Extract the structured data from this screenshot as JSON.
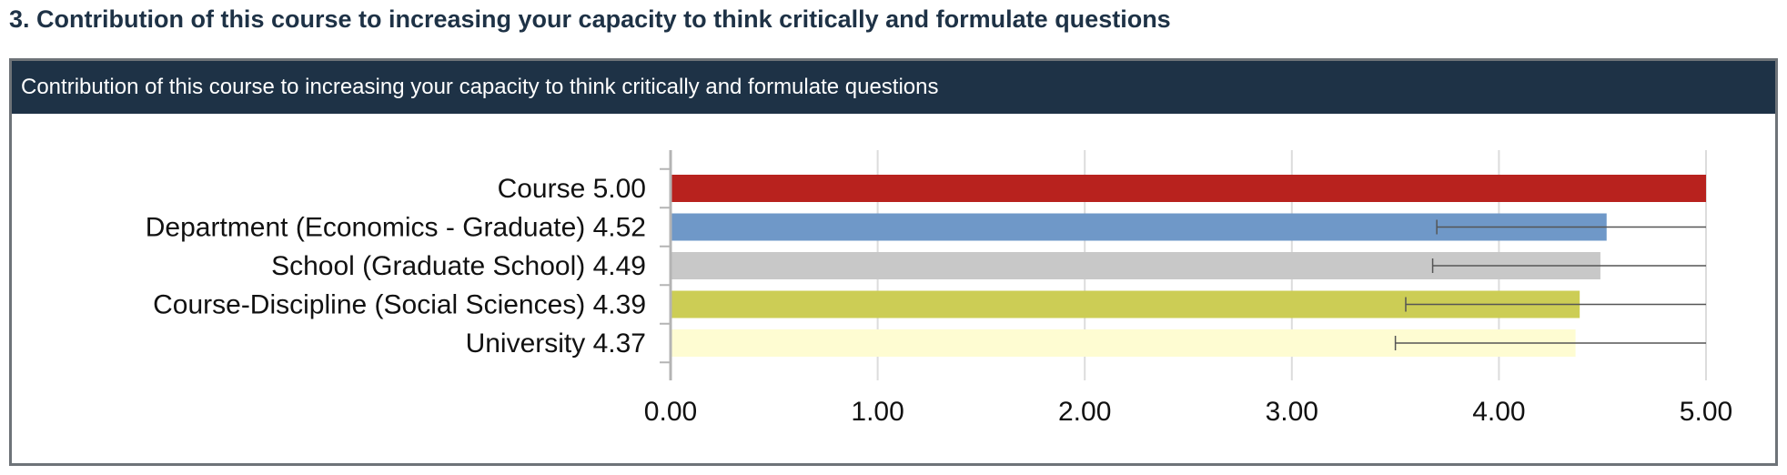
{
  "section_title": "3. Contribution of this course to increasing your capacity to think critically and formulate questions",
  "panel_title": "Contribution of this course to increasing your capacity to think critically and formulate questions",
  "chart_data": {
    "type": "bar",
    "orientation": "horizontal",
    "categories": [
      "Course 5.00",
      "Department (Economics - Graduate) 4.52",
      "School (Graduate School) 4.49",
      "Course-Discipline (Social Sciences) 4.39",
      "University 4.37"
    ],
    "values": [
      5.0,
      4.52,
      4.49,
      4.39,
      4.37
    ],
    "error_bars": [
      null,
      {
        "low": 3.7,
        "high": 5.0
      },
      {
        "low": 3.68,
        "high": 5.0
      },
      {
        "low": 3.55,
        "high": 5.0
      },
      {
        "low": 3.5,
        "high": 5.0
      }
    ],
    "colors": [
      "#b8221e",
      "#6f98c8",
      "#c8c8c8",
      "#cccd55",
      "#fefcd2"
    ],
    "xlim": [
      0,
      5
    ],
    "xticks": [
      "0.00",
      "1.00",
      "2.00",
      "3.00",
      "4.00",
      "5.00"
    ],
    "grid": "vertical"
  }
}
